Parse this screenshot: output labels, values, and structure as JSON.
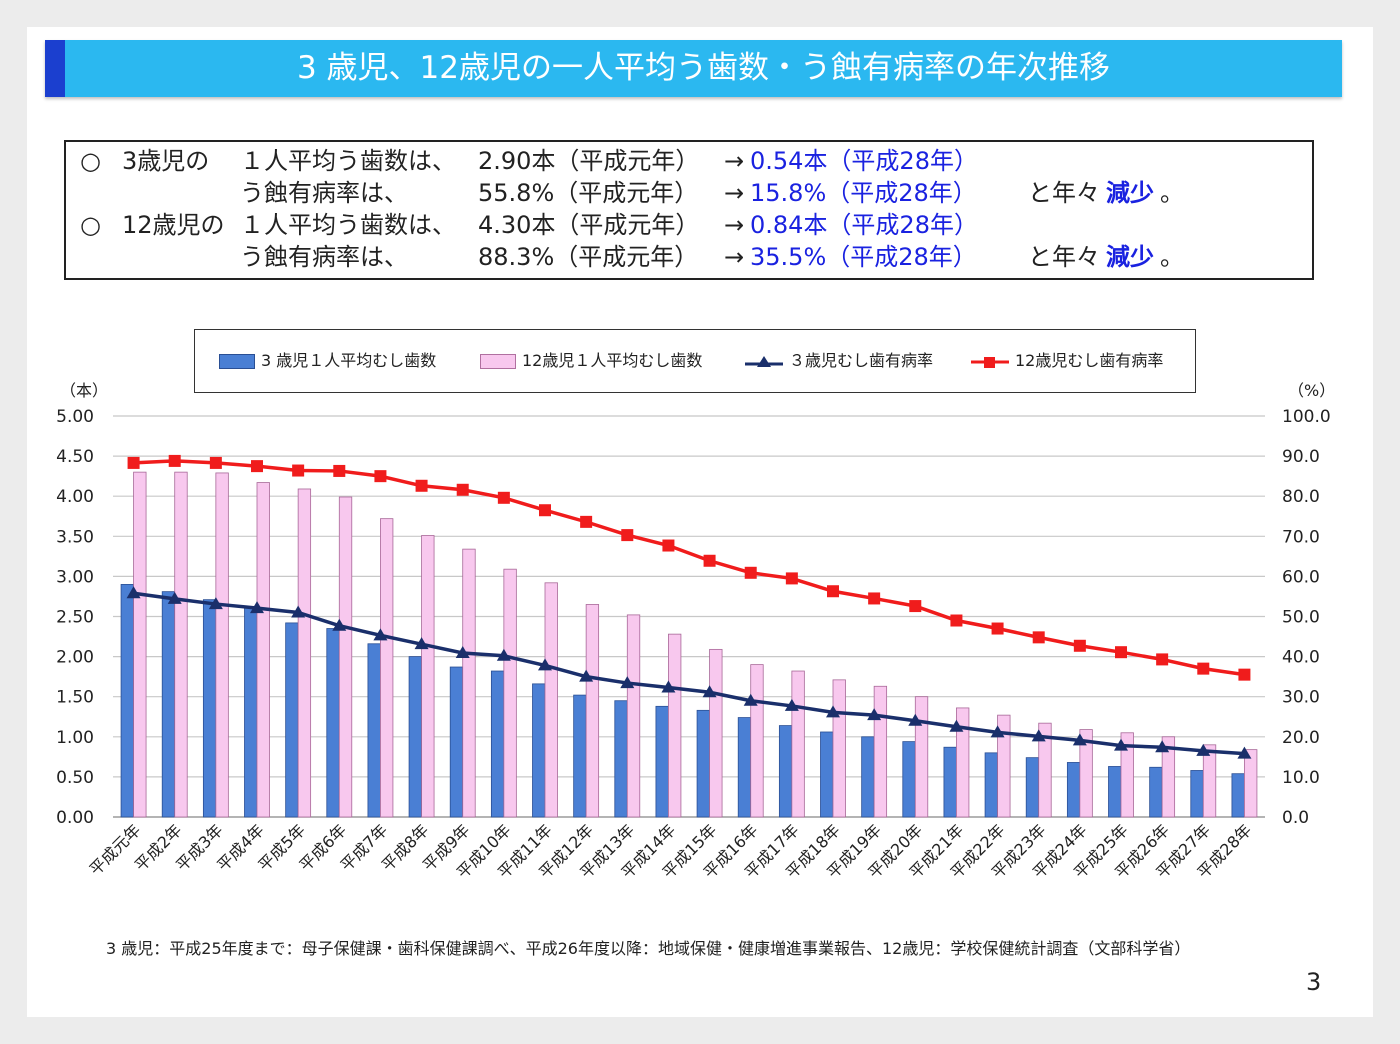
{
  "title": "3 歳児、12歳児の一人平均う歯数・う蝕有病率の年次推移",
  "summary": {
    "rows": [
      {
        "bullet": "○",
        "subject": "3歳児の",
        "label": "１人平均う歯数は、",
        "from": "2.90本（平成元年）",
        "arrow": "→",
        "to": "0.54本（平成28年）",
        "suffix": "",
        "emph": "",
        "end": ""
      },
      {
        "bullet": "",
        "subject": "",
        "label": "う蝕有病率は、",
        "from": "55.8%（平成元年）",
        "arrow": "→",
        "to": "15.8%（平成28年）",
        "suffix": "と年々",
        "emph": "減少",
        "end": "。"
      },
      {
        "bullet": "○",
        "subject": "12歳児の",
        "label": "１人平均う歯数は、",
        "from": "4.30本（平成元年）",
        "arrow": "→",
        "to": "0.84本（平成28年）",
        "suffix": "",
        "emph": "",
        "end": ""
      },
      {
        "bullet": "",
        "subject": "",
        "label": "う蝕有病率は、",
        "from": "88.3%（平成元年）",
        "arrow": "→",
        "to": "35.5%（平成28年）",
        "suffix": "と年々",
        "emph": "減少",
        "end": "。"
      }
    ]
  },
  "chart_data": {
    "type": "bar+line",
    "categories": [
      "平成元年",
      "平成2年",
      "平成3年",
      "平成4年",
      "平成5年",
      "平成6年",
      "平成7年",
      "平成8年",
      "平成9年",
      "平成10年",
      "平成11年",
      "平成12年",
      "平成13年",
      "平成14年",
      "平成15年",
      "平成16年",
      "平成17年",
      "平成18年",
      "平成19年",
      "平成20年",
      "平成21年",
      "平成22年",
      "平成23年",
      "平成24年",
      "平成25年",
      "平成26年",
      "平成27年",
      "平成28年"
    ],
    "left_axis": {
      "label": "（本）",
      "range": [
        0,
        5
      ],
      "ticks": [
        "0.00",
        "0.50",
        "1.00",
        "1.50",
        "2.00",
        "2.50",
        "3.00",
        "3.50",
        "4.00",
        "4.50",
        "5.00"
      ]
    },
    "right_axis": {
      "label": "（%）",
      "range": [
        0,
        100
      ],
      "ticks": [
        "0.0",
        "10.0",
        "20.0",
        "30.0",
        "40.0",
        "50.0",
        "60.0",
        "70.0",
        "80.0",
        "90.0",
        "100.0"
      ]
    },
    "grid": true,
    "legend_position": "top",
    "series": [
      {
        "name": "3 歳児１人平均むし歯数",
        "kind": "bar",
        "axis": "left",
        "color": "#4a7fd4",
        "values": [
          2.9,
          2.81,
          2.71,
          2.62,
          2.42,
          2.35,
          2.16,
          2.0,
          1.87,
          1.82,
          1.66,
          1.52,
          1.45,
          1.38,
          1.33,
          1.24,
          1.14,
          1.06,
          1.0,
          0.94,
          0.87,
          0.8,
          0.74,
          0.68,
          0.63,
          0.62,
          0.58,
          0.54
        ]
      },
      {
        "name": "12歳児１人平均むし歯数",
        "kind": "bar",
        "axis": "left",
        "color": "#f8c8ee",
        "values": [
          4.3,
          4.3,
          4.29,
          4.17,
          4.09,
          3.99,
          3.72,
          3.51,
          3.34,
          3.09,
          2.92,
          2.65,
          2.52,
          2.28,
          2.09,
          1.9,
          1.82,
          1.71,
          1.63,
          1.5,
          1.36,
          1.27,
          1.17,
          1.09,
          1.05,
          1.0,
          0.9,
          0.84
        ]
      },
      {
        "name": "３歳児むし歯有病率",
        "kind": "line",
        "marker": "triangle",
        "axis": "right",
        "color": "#1a2f6b",
        "values": [
          55.8,
          54.4,
          53.1,
          52.1,
          51.0,
          47.7,
          45.3,
          43.1,
          40.9,
          40.2,
          37.8,
          35.0,
          33.4,
          32.3,
          31.1,
          29.0,
          27.7,
          26.1,
          25.4,
          24.0,
          22.5,
          21.1,
          20.1,
          19.1,
          17.8,
          17.4,
          16.5,
          15.8
        ]
      },
      {
        "name": "12歳児むし歯有病率",
        "kind": "line",
        "marker": "square",
        "axis": "right",
        "color": "#f01c1c",
        "values": [
          88.3,
          88.8,
          88.3,
          87.5,
          86.4,
          86.3,
          85.0,
          82.6,
          81.6,
          79.6,
          76.5,
          73.6,
          70.3,
          67.7,
          63.9,
          60.9,
          59.5,
          56.3,
          54.5,
          52.6,
          49.0,
          47.0,
          44.8,
          42.7,
          41.1,
          39.3,
          37.0,
          35.5
        ]
      }
    ]
  },
  "footer": "3 歳児：平成25年度まで：母子保健課・歯科保健課調べ、平成26年度以降：地域保健・健康増進事業報告、12歳児：学校保健統計調査（文部科学省）",
  "page_number": "3"
}
